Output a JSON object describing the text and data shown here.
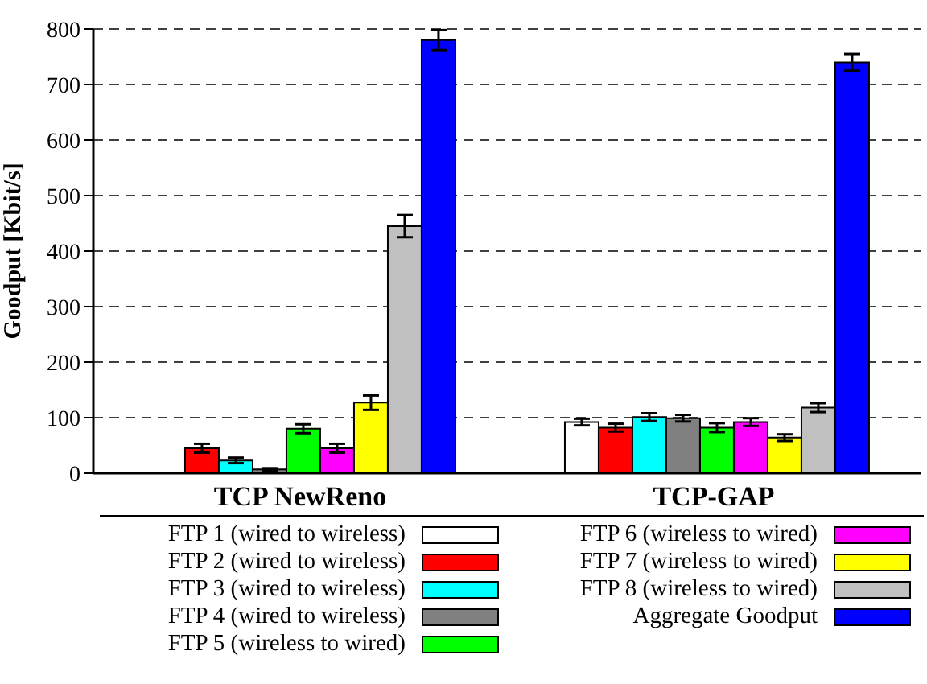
{
  "chart_data": {
    "type": "bar",
    "ylabel": "Goodput [Kbit/s]",
    "categories": [
      "TCP NewReno",
      "TCP-GAP"
    ],
    "series": [
      {
        "name": "FTP 1 (wired to wireless)",
        "color": "#ffffff",
        "values": [
          0,
          92
        ],
        "errors": [
          null,
          6
        ]
      },
      {
        "name": "FTP 2 (wired to wireless)",
        "color": "#ff0000",
        "values": [
          45,
          82
        ],
        "errors": [
          8,
          7
        ]
      },
      {
        "name": "FTP 3 (wired to wireless)",
        "color": "#00ffff",
        "values": [
          23,
          101
        ],
        "errors": [
          5,
          7
        ]
      },
      {
        "name": "FTP 4 (wired to wireless)",
        "color": "#808080",
        "values": [
          7,
          99
        ],
        "errors": [
          2,
          6
        ]
      },
      {
        "name": "FTP 5 (wireless to wired)",
        "color": "#00ff00",
        "values": [
          80,
          82
        ],
        "errors": [
          8,
          8
        ]
      },
      {
        "name": "FTP 6 (wireless to wired)",
        "color": "#ff00ff",
        "values": [
          45,
          92
        ],
        "errors": [
          8,
          7
        ]
      },
      {
        "name": "FTP 7 (wireless to wired)",
        "color": "#ffff00",
        "values": [
          127,
          64
        ],
        "errors": [
          13,
          6
        ]
      },
      {
        "name": "FTP 8 (wireless to wired)",
        "color": "#c0c0c0",
        "values": [
          445,
          118
        ],
        "errors": [
          20,
          8
        ]
      },
      {
        "name": "Aggregate Goodput",
        "color": "#0000ff",
        "values": [
          780,
          740
        ],
        "errors": [
          18,
          15
        ]
      }
    ],
    "ylim": [
      0,
      800
    ],
    "yticks": [
      0,
      100,
      200,
      300,
      400,
      500,
      600,
      700,
      800
    ],
    "grid": "y",
    "legend": "bottom"
  }
}
